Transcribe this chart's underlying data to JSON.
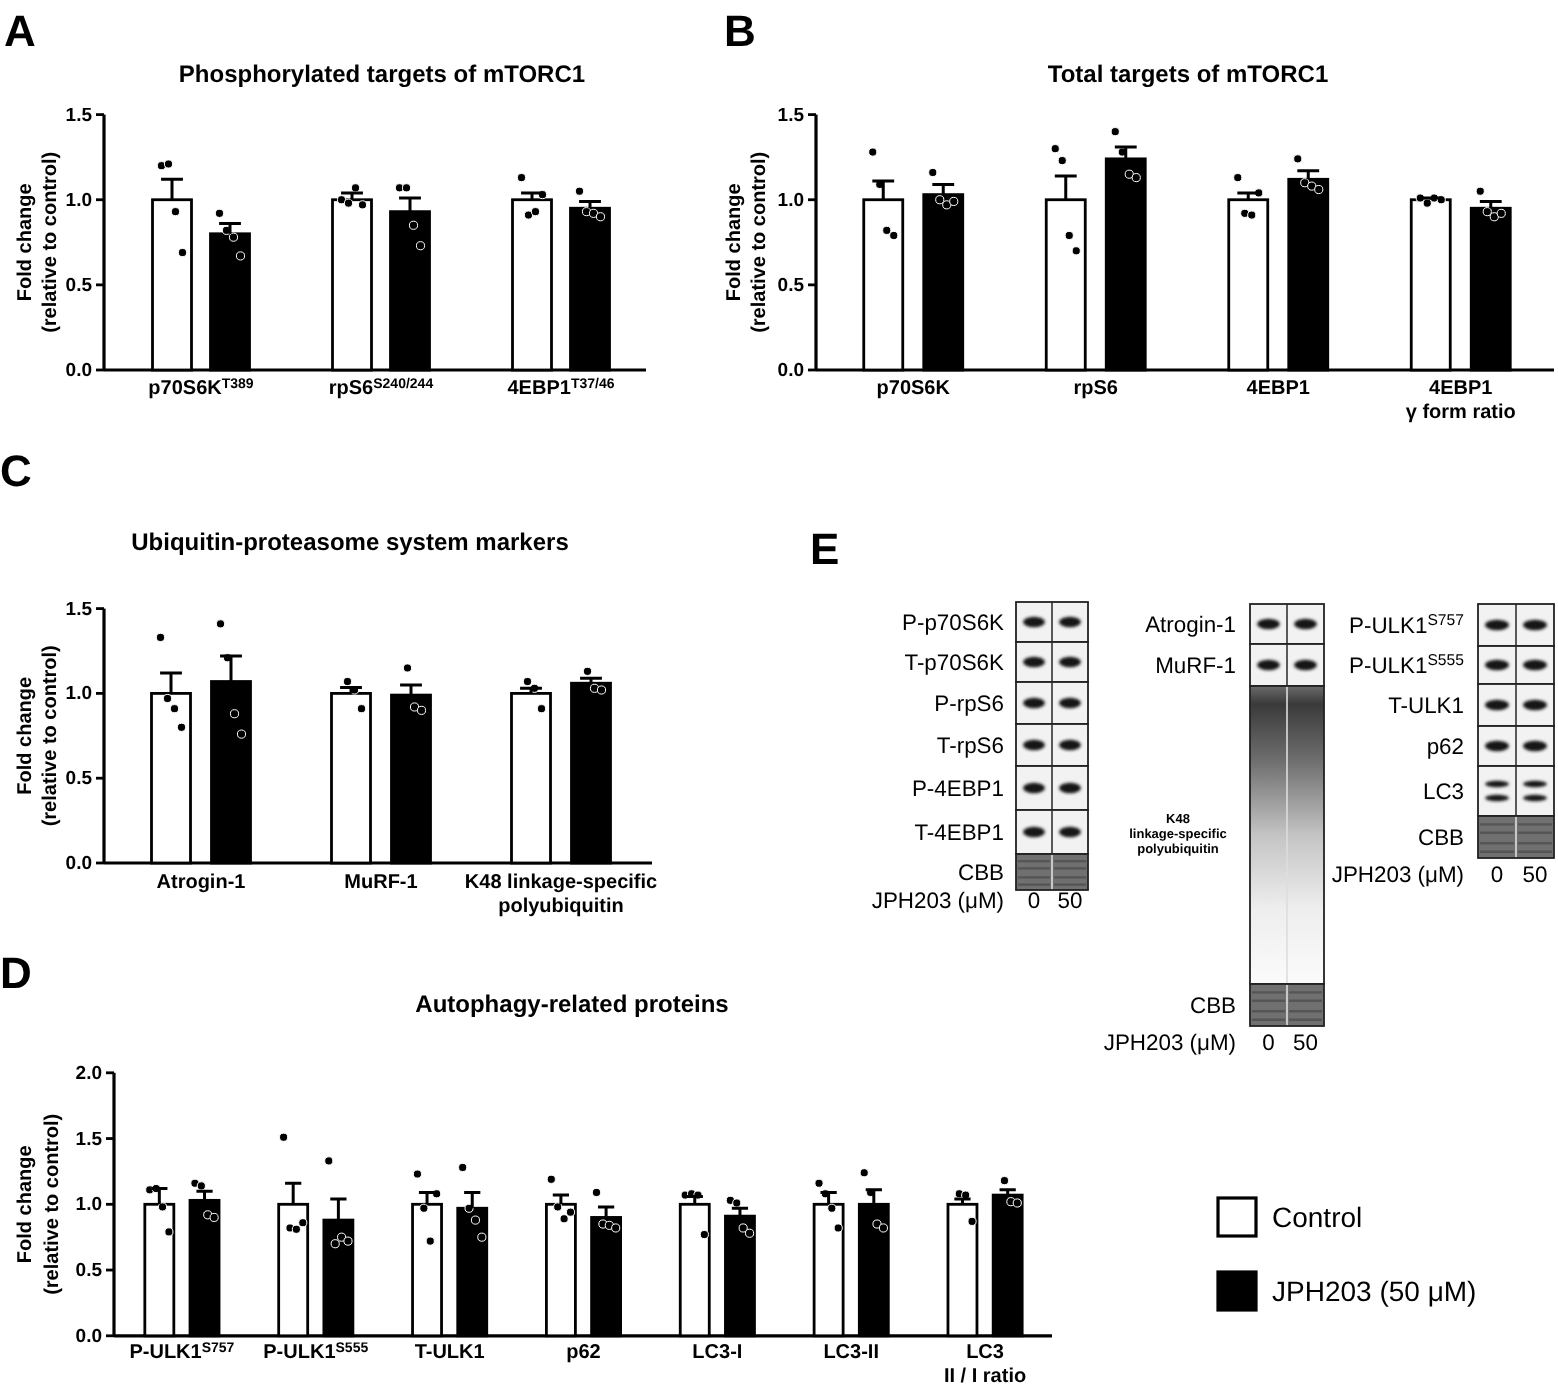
{
  "chart_data": [
    {
      "type": "bar",
      "title": "Phosphorylated targets of mTORC1",
      "ylabel": "Fold change\n(relative to control)",
      "annotations": [
        "A"
      ],
      "marker": "circle",
      "categories": [
        "p70S6K$^{T389}$",
        "rpS6$^{S240/244}$",
        "4EBP1$^{T37/46}$"
      ],
      "ylim": [
        0,
        1.5
      ],
      "yticks": [
        {
          "value": 0,
          "label": "0.0"
        },
        {
          "value": 0.5,
          "label": "0.5"
        },
        {
          "value": 1,
          "label": "1.0"
        },
        {
          "value": 1.5,
          "label": "1.5"
        }
      ],
      "series": [
        {
          "color": "#ffffff",
          "values": [
            1.0,
            1.0,
            1.0
          ],
          "errors": [
            [
              1.0,
              1.12
            ],
            [
              1.0,
              1.04
            ],
            [
              1.0,
              1.04
            ]
          ]
        },
        {
          "color": "#000000",
          "values": [
            0.8,
            0.93,
            0.95
          ],
          "errors": [
            [
              0.8,
              0.86
            ],
            [
              0.93,
              1.01
            ],
            [
              0.95,
              0.99
            ]
          ]
        },
        {
          "type": "scatter",
          "color": "#000000",
          "x": [
            "p70S6K$^{T389}$",
            "p70S6K$^{T389}$",
            "p70S6K$^{T389}$",
            "p70S6K$^{T389}$",
            "rpS6$^{S240/244}$",
            "rpS6$^{S240/244}$",
            "rpS6$^{S240/244}$",
            "rpS6$^{S240/244}$",
            "4EBP1$^{T37/46}$",
            "4EBP1$^{T37/46}$",
            "4EBP1$^{T37/46}$",
            "4EBP1$^{T37/46}$"
          ],
          "values": [
            1.2,
            1.21,
            0.93,
            0.69,
            1.0,
            0.98,
            1.07,
            0.97,
            1.13,
            0.91,
            0.93,
            1.03
          ]
        },
        {
          "type": "scatter",
          "color": "#000000",
          "x": [
            "p70S6K$^{T389}$",
            "p70S6K$^{T389}$",
            "p70S6K$^{T389}$",
            "p70S6K$^{T389}$",
            "rpS6$^{S240/244}$",
            "rpS6$^{S240/244}$",
            "rpS6$^{S240/244}$",
            "rpS6$^{S240/244}$",
            "4EBP1$^{T37/46}$",
            "4EBP1$^{T37/46}$",
            "4EBP1$^{T37/46}$",
            "4EBP1$^{T37/46}$"
          ],
          "values": [
            0.92,
            0.82,
            0.78,
            0.67,
            1.07,
            1.07,
            0.85,
            0.73,
            1.05,
            0.93,
            0.92,
            0.9
          ]
        }
      ]
    },
    {
      "type": "bar",
      "title": "Total targets of mTORC1",
      "ylabel": "Fold change\n(relative to control)",
      "annotations": [
        "B"
      ],
      "marker": "circle",
      "categories": [
        "p70S6K",
        "rpS6",
        "4EBP1",
        "4EBP1\nγ form ratio"
      ],
      "ylim": [
        0,
        1.5
      ],
      "yticks": [
        {
          "value": 0,
          "label": "0.0"
        },
        {
          "value": 0.5,
          "label": "0.5"
        },
        {
          "value": 1,
          "label": "1.0"
        },
        {
          "value": 1.5,
          "label": "1.5"
        }
      ],
      "series": [
        {
          "color": "#ffffff",
          "values": [
            1.0,
            1.0,
            1.0,
            1.0
          ],
          "errors": [
            [
              1.0,
              1.11
            ],
            [
              1.0,
              1.14
            ],
            [
              1.0,
              1.04
            ],
            [
              1.0,
              1.01
            ]
          ]
        },
        {
          "color": "#000000",
          "values": [
            1.03,
            1.24,
            1.12,
            0.95
          ],
          "errors": [
            [
              1.03,
              1.09
            ],
            [
              1.24,
              1.31
            ],
            [
              1.12,
              1.17
            ],
            [
              0.95,
              0.99
            ]
          ]
        },
        {
          "type": "scatter",
          "color": "#000000",
          "x": [
            "p70S6K",
            "p70S6K",
            "p70S6K",
            "p70S6K",
            "rpS6",
            "rpS6",
            "rpS6",
            "rpS6",
            "4EBP1",
            "4EBP1",
            "4EBP1",
            "4EBP1",
            "4EBP1\nγ form ratio",
            "4EBP1\nγ form ratio",
            "4EBP1\nγ form ratio",
            "4EBP1\nγ form ratio"
          ],
          "values": [
            1.28,
            1.09,
            0.82,
            0.79,
            1.3,
            1.23,
            0.79,
            0.7,
            1.13,
            0.92,
            0.91,
            1.04,
            1.01,
            0.98,
            1.01,
            1.0
          ]
        },
        {
          "type": "scatter",
          "color": "#000000",
          "x": [
            "p70S6K",
            "p70S6K",
            "p70S6K",
            "p70S6K",
            "rpS6",
            "rpS6",
            "rpS6",
            "rpS6",
            "4EBP1",
            "4EBP1",
            "4EBP1",
            "4EBP1",
            "4EBP1\nγ form ratio",
            "4EBP1\nγ form ratio",
            "4EBP1\nγ form ratio",
            "4EBP1\nγ form ratio"
          ],
          "values": [
            1.16,
            1.0,
            0.97,
            0.99,
            1.4,
            1.28,
            1.15,
            1.13,
            1.24,
            1.1,
            1.08,
            1.06,
            1.05,
            0.93,
            0.9,
            0.92
          ]
        }
      ]
    },
    {
      "type": "bar",
      "title": "Ubiquitin-proteasome system markers",
      "ylabel": "Fold change\n(relative to control)",
      "annotations": [
        "C"
      ],
      "marker": "circle",
      "categories": [
        "Atrogin-1",
        "MuRF-1",
        "K48 linkage-specific\npolyubiquitin"
      ],
      "ylim": [
        0,
        1.5
      ],
      "yticks": [
        {
          "value": 0,
          "label": "0.0"
        },
        {
          "value": 0.5,
          "label": "0.5"
        },
        {
          "value": 1,
          "label": "1.0"
        },
        {
          "value": 1.5,
          "label": "1.5"
        }
      ],
      "series": [
        {
          "color": "#ffffff",
          "values": [
            1.0,
            1.0,
            1.0
          ],
          "errors": [
            [
              1.0,
              1.12
            ],
            [
              1.0,
              1.035
            ],
            [
              1.0,
              1.03
            ]
          ]
        },
        {
          "color": "#000000",
          "values": [
            1.07,
            0.99,
            1.06
          ],
          "errors": [
            [
              1.07,
              1.22
            ],
            [
              0.99,
              1.05
            ],
            [
              1.06,
              1.09
            ]
          ]
        },
        {
          "type": "scatter",
          "color": "#000000",
          "x": [
            "Atrogin-1",
            "Atrogin-1",
            "Atrogin-1",
            "Atrogin-1",
            "MuRF-1",
            "MuRF-1",
            "MuRF-1",
            "K48 linkage-specific\npolyubiquitin",
            "K48 linkage-specific\npolyubiquitin",
            "K48 linkage-specific\npolyubiquitin"
          ],
          "values": [
            1.33,
            0.97,
            0.91,
            0.8,
            1.07,
            1.02,
            0.91,
            1.07,
            1.03,
            0.91
          ]
        },
        {
          "type": "scatter",
          "color": "#000000",
          "x": [
            "Atrogin-1",
            "Atrogin-1",
            "Atrogin-1",
            "Atrogin-1",
            "MuRF-1",
            "MuRF-1",
            "MuRF-1",
            "K48 linkage-specific\npolyubiquitin",
            "K48 linkage-specific\npolyubiquitin",
            "K48 linkage-specific\npolyubiquitin"
          ],
          "values": [
            1.41,
            1.21,
            0.88,
            0.76,
            1.15,
            0.92,
            0.9,
            1.13,
            1.03,
            1.02
          ]
        }
      ]
    },
    {
      "type": "bar",
      "title": "Autophagy-related proteins",
      "ylabel": "Fold change\n(relative to control)",
      "annotations": [
        "D"
      ],
      "marker": "circle",
      "legend": "right",
      "categories": [
        "P-ULK1$^{S757}$",
        "P-ULK1$^{S555}$",
        "T-ULK1",
        "p62",
        "LC3-I",
        "LC3-II",
        "LC3\nII / I ratio"
      ],
      "ylim": [
        0,
        2
      ],
      "yticks": [
        {
          "value": 0,
          "label": "0.0"
        },
        {
          "value": 0.5,
          "label": "0.5"
        },
        {
          "value": 1,
          "label": "1.0"
        },
        {
          "value": 1.5,
          "label": "1.5"
        },
        {
          "value": 2,
          "label": "2.0"
        }
      ],
      "series": [
        {
          "name": "Control",
          "color": "#ffffff",
          "values": [
            1.0,
            1.0,
            1.0,
            1.0,
            1.0,
            1.0,
            1.0
          ],
          "errors": [
            [
              1.0,
              1.12
            ],
            [
              1.0,
              1.16
            ],
            [
              1.0,
              1.09
            ],
            [
              1.0,
              1.07
            ],
            [
              1.0,
              1.06
            ],
            [
              1.0,
              1.09
            ],
            [
              1.0,
              1.04
            ]
          ]
        },
        {
          "name": "JPH203 (50 μM)",
          "color": "#000000",
          "values": [
            1.03,
            0.88,
            0.97,
            0.9,
            0.91,
            1.0,
            1.07
          ],
          "errors": [
            [
              1.03,
              1.1
            ],
            [
              0.88,
              1.04
            ],
            [
              0.97,
              1.09
            ],
            [
              0.9,
              0.98
            ],
            [
              0.91,
              0.97
            ],
            [
              1.0,
              1.11
            ],
            [
              1.07,
              1.11
            ]
          ]
        },
        {
          "type": "scatter",
          "color": "#000000",
          "x": [
            "P-ULK1$^{S757}$",
            "P-ULK1$^{S757}$",
            "P-ULK1$^{S757}$",
            "P-ULK1$^{S757}$",
            "P-ULK1$^{S555}$",
            "P-ULK1$^{S555}$",
            "P-ULK1$^{S555}$",
            "P-ULK1$^{S555}$",
            "T-ULK1",
            "T-ULK1",
            "T-ULK1",
            "T-ULK1",
            "p62",
            "p62",
            "p62",
            "p62",
            "LC3-I",
            "LC3-I",
            "LC3-I",
            "LC3-I",
            "LC3-II",
            "LC3-II",
            "LC3-II",
            "LC3-II",
            "LC3\nII / I ratio",
            "LC3\nII / I ratio",
            "LC3\nII / I ratio"
          ],
          "values": [
            1.11,
            1.12,
            0.98,
            0.79,
            1.51,
            0.82,
            0.81,
            0.86,
            1.23,
            0.97,
            0.72,
            1.08,
            1.19,
            0.98,
            0.89,
            0.94,
            1.07,
            1.08,
            1.07,
            0.77,
            1.16,
            1.08,
            0.97,
            0.82,
            1.08,
            1.07,
            0.87
          ]
        },
        {
          "type": "scatter",
          "color": "#000000",
          "x": [
            "P-ULK1$^{S757}$",
            "P-ULK1$^{S757}$",
            "P-ULK1$^{S757}$",
            "P-ULK1$^{S757}$",
            "P-ULK1$^{S555}$",
            "P-ULK1$^{S555}$",
            "P-ULK1$^{S555}$",
            "P-ULK1$^{S555}$",
            "T-ULK1",
            "T-ULK1",
            "T-ULK1",
            "T-ULK1",
            "p62",
            "p62",
            "p62",
            "p62",
            "LC3-I",
            "LC3-I",
            "LC3-I",
            "LC3-I",
            "LC3-II",
            "LC3-II",
            "LC3-II",
            "LC3-II",
            "LC3\nII / I ratio",
            "LC3\nII / I ratio",
            "LC3\nII / I ratio"
          ],
          "values": [
            1.16,
            1.14,
            0.92,
            0.9,
            1.33,
            0.7,
            0.75,
            0.72,
            1.28,
            0.97,
            0.88,
            0.75,
            1.09,
            0.85,
            0.84,
            0.82,
            1.03,
            1.01,
            0.82,
            0.78,
            1.24,
            1.09,
            0.85,
            0.82,
            1.18,
            1.02,
            1.01
          ]
        }
      ]
    },
    {
      "type": "other",
      "annotations": [
        "E",
        "P-p70S6K",
        "T-p70S6K",
        "P-rpS6",
        "T-rpS6",
        "P-4EBP1",
        "T-4EBP1",
        "CBB",
        "JPH203 (μM)",
        "0",
        "50",
        "Atrogin-1",
        "MuRF-1",
        "K48\nlinkage-specific\npolyubiquitin",
        "CBB",
        "JPH203 (μM)",
        "0",
        "50",
        "P-ULK1$^{S757}$",
        "P-ULK1$^{S555}$",
        "T-ULK1",
        "p62",
        "LC3",
        "CBB",
        "JPH203 (μM)",
        "0",
        "50"
      ]
    }
  ]
}
